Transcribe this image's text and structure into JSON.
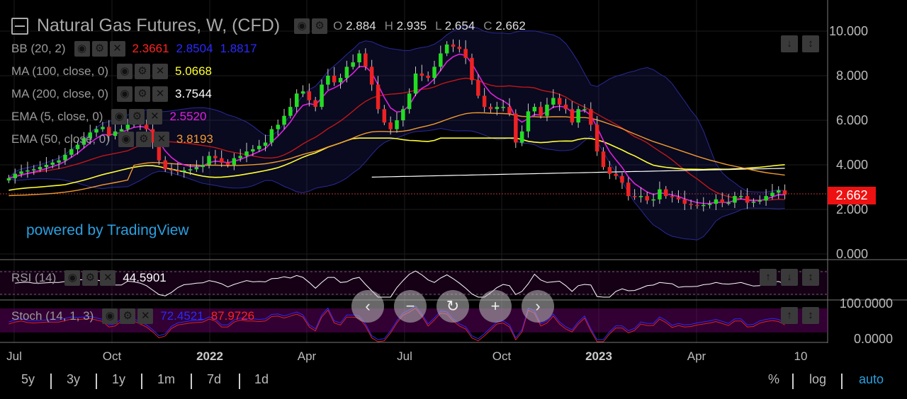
{
  "header": {
    "title": "Natural Gas Futures, W, (CFD)",
    "ohlc": [
      {
        "k": "O",
        "v": "2.884"
      },
      {
        "k": "H",
        "v": "2.935"
      },
      {
        "k": "L",
        "v": "2.654"
      },
      {
        "k": "C",
        "v": "2.662"
      }
    ]
  },
  "indicators": {
    "bb": {
      "label": "BB (20, 2)",
      "v1": "2.3661",
      "v2": "2.8504",
      "v3": "1.8817",
      "c1": "#ff2222",
      "c2": "#2222ff",
      "c3": "#2222ff"
    },
    "ma100": {
      "label": "MA (100, close, 0)",
      "value": "5.0668",
      "color": "#ffff33"
    },
    "ma200": {
      "label": "MA (200, close, 0)",
      "value": "3.7544",
      "color": "#ffffff"
    },
    "ema5": {
      "label": "EMA (5, close, 0)",
      "value": "2.5520",
      "color": "#e020e0"
    },
    "ema50": {
      "label": "EMA (50, close, 0)",
      "value": "3.8193",
      "color": "#f09a30"
    }
  },
  "powered_by": "powered by TradingView",
  "last_price": "2.662",
  "rsi": {
    "label": "RSI (14)",
    "value": "44.5901"
  },
  "stoch": {
    "label": "Stoch (14, 1, 3)",
    "k": "72.4521",
    "d": "87.9726"
  },
  "y_axis": [
    "10.000",
    "8.000",
    "6.000",
    "4.000",
    "2.000",
    "0.000"
  ],
  "y_axis_osc": [
    "100.0000",
    "0.0000"
  ],
  "x_axis": [
    {
      "t": "Jul",
      "bold": false
    },
    {
      "t": "Oct",
      "bold": false
    },
    {
      "t": "2022",
      "bold": true
    },
    {
      "t": "Apr",
      "bold": false
    },
    {
      "t": "Jul",
      "bold": false
    },
    {
      "t": "Oct",
      "bold": false
    },
    {
      "t": "2023",
      "bold": true
    },
    {
      "t": "Apr",
      "bold": false
    },
    {
      "t": "10",
      "bold": false
    }
  ],
  "ranges": [
    "5y",
    "3y",
    "1y",
    "1m",
    "7d",
    "1d"
  ],
  "options": [
    "%",
    "log",
    "auto"
  ],
  "colors": {
    "up": "#22dd22",
    "down": "#ee2222",
    "accent": "#2aa0e0"
  },
  "chart_data": {
    "type": "candlestick",
    "ylim": [
      0,
      10.5
    ],
    "close": [
      3.4,
      3.6,
      3.7,
      3.75,
      3.8,
      3.9,
      4.0,
      4.1,
      4.2,
      4.45,
      4.7,
      4.9,
      5.2,
      5.45,
      5.6,
      5.7,
      5.3,
      5.5,
      5.6,
      5.8,
      5.9,
      5.8,
      5.6,
      5.0,
      4.2,
      3.8,
      3.75,
      3.7,
      3.75,
      3.8,
      3.9,
      4.0,
      4.4,
      4.3,
      4.1,
      4.0,
      4.3,
      4.4,
      4.6,
      4.7,
      4.85,
      5.0,
      5.6,
      5.8,
      6.2,
      6.6,
      7.2,
      7.3,
      6.9,
      6.6,
      7.6,
      8.0,
      7.7,
      7.9,
      8.4,
      8.6,
      9.0,
      8.4,
      7.6,
      6.5,
      5.9,
      5.6,
      6.0,
      6.5,
      7.2,
      8.1,
      8.0,
      7.9,
      8.4,
      9.0,
      9.4,
      9.3,
      9.2,
      8.8,
      7.8,
      7.1,
      6.6,
      6.5,
      6.6,
      6.6,
      6.3,
      5.0,
      5.5,
      6.4,
      6.6,
      6.2,
      6.7,
      7.0,
      6.7,
      6.5,
      5.9,
      6.5,
      6.5,
      5.8,
      4.6,
      3.9,
      3.6,
      3.5,
      3.2,
      2.6,
      2.55,
      2.6,
      2.4,
      2.45,
      2.9,
      2.6,
      2.55,
      2.45,
      2.25,
      2.2,
      2.15,
      2.2,
      2.25,
      2.45,
      2.3,
      2.3,
      2.6,
      2.6,
      2.3,
      2.35,
      2.4,
      2.6,
      2.75,
      2.85,
      2.66
    ]
  }
}
